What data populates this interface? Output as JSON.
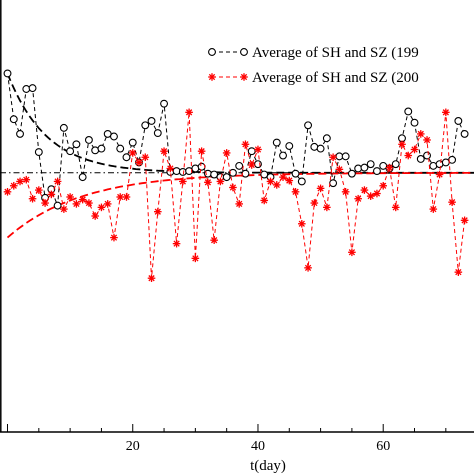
{
  "chart_data": {
    "type": "line",
    "xlabel": "t(day)",
    "xlim": [
      -1.2,
      74.5
    ],
    "ylim": [
      -3.0,
      2.0
    ],
    "x_ticks": [
      20,
      40,
      60
    ],
    "grid": false,
    "legend_position": "top-right",
    "series": [
      {
        "name": "Average of SH and SZ (199",
        "color": "#000000",
        "marker": "open-circle",
        "line_style": "dashed",
        "x": [
          0,
          1,
          2,
          3,
          4,
          5,
          6,
          7,
          8,
          9,
          10,
          11,
          12,
          13,
          14,
          15,
          16,
          17,
          18,
          19,
          20,
          21,
          22,
          23,
          24,
          25,
          26,
          27,
          28,
          29,
          30,
          31,
          32,
          33,
          34,
          35,
          36,
          37,
          38,
          39,
          40,
          41,
          42,
          43,
          44,
          45,
          46,
          47,
          48,
          49,
          50,
          51,
          52,
          53,
          54,
          55,
          56,
          57,
          58,
          59,
          60,
          61,
          62,
          63,
          64,
          65,
          66,
          67,
          68,
          69,
          70,
          71,
          72,
          73
        ],
        "y": [
          1.15,
          0.62,
          0.45,
          0.97,
          0.98,
          0.24,
          -0.29,
          -0.19,
          -0.38,
          0.52,
          0.25,
          0.33,
          -0.05,
          0.38,
          0.26,
          0.28,
          0.45,
          0.42,
          0.28,
          0.18,
          0.35,
          0.12,
          0.55,
          0.6,
          0.46,
          0.8,
          0.01,
          0.02,
          0.01,
          0.02,
          0.05,
          0.07,
          -0.01,
          -0.02,
          -0.05,
          -0.05,
          0.0,
          0.08,
          -0.01,
          0.25,
          0.1,
          -0.02,
          -0.05,
          0.35,
          0.2,
          0.31,
          -0.01,
          -0.1,
          0.55,
          0.3,
          0.28,
          0.4,
          -0.12,
          0.19,
          0.19,
          -0.01,
          0.05,
          0.06,
          0.1,
          0.02,
          0.08,
          0.05,
          0.1,
          0.4,
          0.71,
          0.58,
          0.16,
          0.2,
          0.08,
          0.1,
          0.12,
          0.15,
          0.6,
          0.45
        ]
      },
      {
        "name": "Average of SH and SZ (200",
        "color": "#ff0000",
        "marker": "asterisk",
        "line_style": "dashed",
        "x": [
          0,
          1,
          2,
          3,
          4,
          5,
          6,
          7,
          8,
          9,
          10,
          11,
          12,
          13,
          14,
          15,
          16,
          17,
          18,
          19,
          20,
          21,
          22,
          23,
          24,
          25,
          26,
          27,
          28,
          29,
          30,
          31,
          32,
          33,
          34,
          35,
          36,
          37,
          38,
          39,
          40,
          41,
          42,
          43,
          44,
          45,
          46,
          47,
          48,
          49,
          50,
          51,
          52,
          53,
          54,
          55,
          56,
          57,
          58,
          59,
          60,
          61,
          62,
          63,
          64,
          65,
          66,
          67,
          68,
          69,
          70,
          71,
          72,
          73
        ],
        "y": [
          -0.22,
          -0.15,
          -0.1,
          -0.08,
          -0.3,
          -0.2,
          -0.35,
          -0.25,
          -0.1,
          -0.42,
          -0.28,
          -0.36,
          -0.31,
          -0.35,
          -0.5,
          -0.4,
          -0.36,
          -0.75,
          -0.28,
          -0.28,
          0.23,
          0.12,
          0.18,
          -1.22,
          -0.45,
          0.25,
          0.05,
          -0.82,
          -0.1,
          0.7,
          -0.99,
          0.25,
          -0.11,
          -0.78,
          -0.1,
          0.23,
          -0.17,
          -0.36,
          0.33,
          0.09,
          0.27,
          -0.32,
          -0.1,
          -0.14,
          -0.05,
          -0.09,
          -0.22,
          -0.59,
          -1.1,
          -0.35,
          -0.18,
          -0.4,
          0.18,
          0.04,
          -0.22,
          -0.92,
          -0.3,
          -0.2,
          -0.27,
          -0.24,
          -0.15,
          0.06,
          -0.4,
          0.33,
          0.2,
          0.27,
          0.45,
          0.38,
          -0.42,
          -0.02,
          0.7,
          -0.34,
          -1.15,
          -0.55
        ]
      }
    ],
    "fit_curves": [
      {
        "color": "#000000",
        "line_style": "dashed",
        "start": 1.15,
        "asymptote": 0.0,
        "rate": 0.16
      },
      {
        "color": "#ff0000",
        "line_style": "dashed",
        "start": -0.75,
        "asymptote": 0.0,
        "rate": 0.085
      }
    ],
    "reference_line": {
      "y": 0.0,
      "color": "#000000",
      "line_style": "dash-dot"
    }
  }
}
